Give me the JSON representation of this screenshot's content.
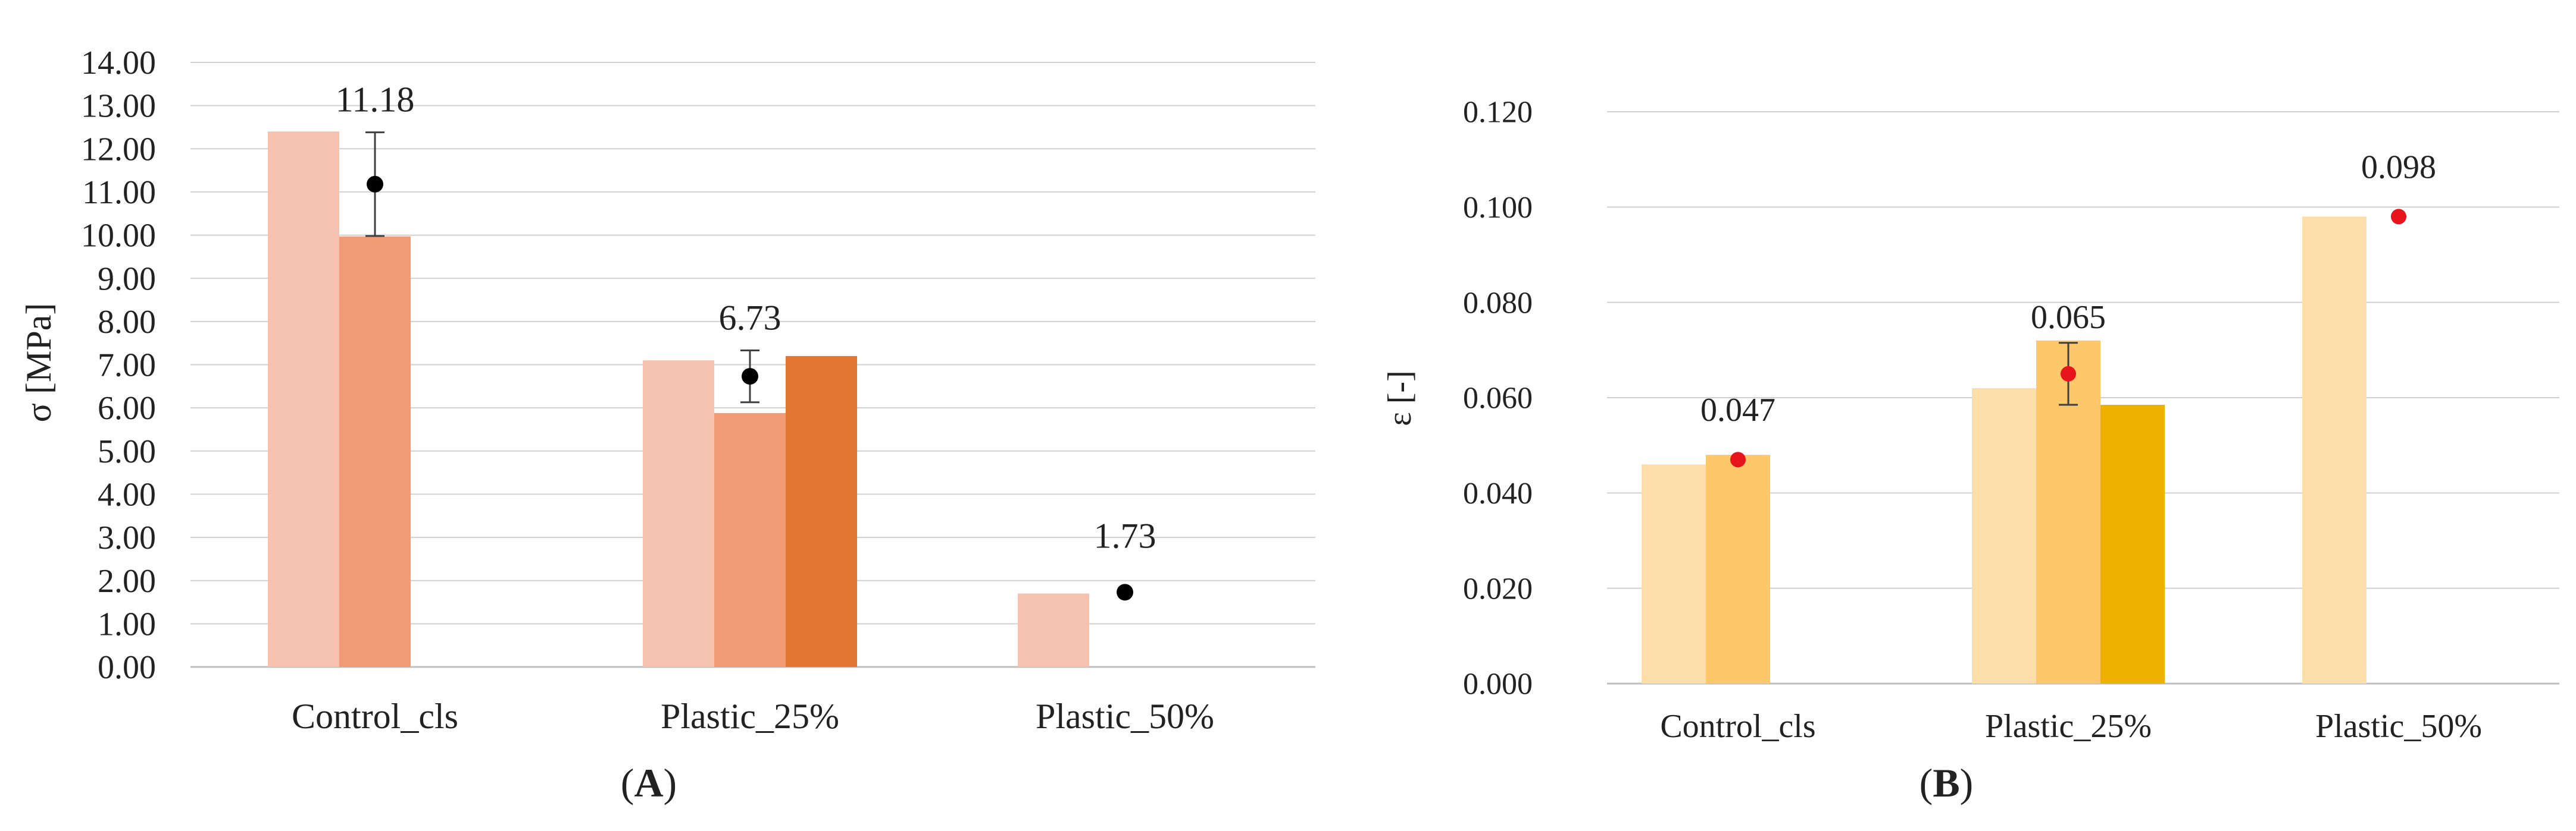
{
  "chart_data": [
    {
      "panel_label": "A",
      "type": "bar",
      "ylabel": "σ [MPa]",
      "ylim": [
        0,
        14
      ],
      "ytick_step": 1,
      "ytick_decimals": 2,
      "grid": true,
      "categories": [
        "Control_cls",
        "Plastic_25%",
        "Plastic_50%"
      ],
      "series": [
        {
          "values": [
            12.4,
            7.1,
            1.7
          ],
          "color": "#F4C2AF"
        },
        {
          "values": [
            9.97,
            5.88,
            null
          ],
          "color": "#F09B73"
        },
        {
          "values": [
            null,
            7.2,
            null
          ],
          "color": "#E07631"
        }
      ],
      "means": [
        11.18,
        6.73,
        1.73
      ],
      "mean_labels": [
        "11.18",
        "6.73",
        "1.73"
      ],
      "error": [
        1.2,
        0.6,
        null
      ],
      "mean_color": "#000000"
    },
    {
      "panel_label": "B",
      "type": "bar",
      "ylabel": "ε [-]",
      "ylim": [
        0,
        0.12
      ],
      "ytick_step": 0.02,
      "ytick_decimals": 3,
      "grid": true,
      "categories": [
        "Control_cls",
        "Plastic_25%",
        "Plastic_50%"
      ],
      "series": [
        {
          "values": [
            0.046,
            0.062,
            0.098
          ],
          "color": "#FDDDA8"
        },
        {
          "values": [
            0.048,
            0.072,
            null
          ],
          "color": "#FDC76A"
        },
        {
          "values": [
            null,
            0.0585,
            null
          ],
          "color": "#EFB100"
        }
      ],
      "means": [
        0.047,
        0.065,
        0.098
      ],
      "mean_labels": [
        "0.047",
        "0.065",
        "0.098"
      ],
      "error": [
        null,
        0.0065,
        null
      ],
      "mean_color": "#E8141B"
    }
  ]
}
